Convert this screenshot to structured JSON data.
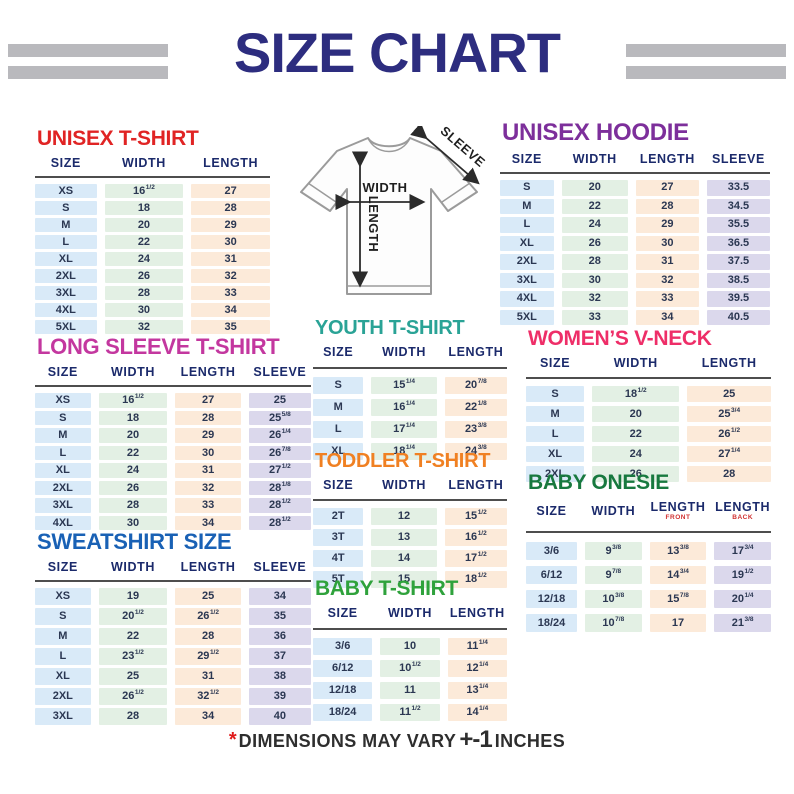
{
  "page": {
    "title": "SIZE CHART",
    "title_color": "#2d2d7f",
    "bar_color": "#b9b9bd",
    "footnote": {
      "asterisk": "*",
      "asterisk_color": "#e01b1b",
      "text": "DIMENSIONS MAY VARY",
      "tolerance": "+-1",
      "unit": "INCHES"
    }
  },
  "diagram": {
    "labels": {
      "width": "WIDTH",
      "length": "LENGTH",
      "sleeve": "SLEEVE"
    }
  },
  "column_colors": {
    "size": "#d9eaf8",
    "width": "#e3f0e4",
    "length": "#fcead9",
    "sleeve": "#dbd8ec"
  },
  "tables": [
    {
      "id": "unisex-tshirt",
      "title": "UNISEX T-SHIRT",
      "title_color": "#e02424",
      "columns": [
        {
          "label": "SIZE",
          "color": "#d9eaf8"
        },
        {
          "label": "WIDTH",
          "color": "#e3f0e4"
        },
        {
          "label": "LENGTH",
          "color": "#fcead9"
        }
      ],
      "rows": [
        [
          "XS",
          "16½",
          "27"
        ],
        [
          "S",
          "18",
          "28"
        ],
        [
          "M",
          "20",
          "29"
        ],
        [
          "L",
          "22",
          "30"
        ],
        [
          "XL",
          "24",
          "31"
        ],
        [
          "2XL",
          "26",
          "32"
        ],
        [
          "3XL",
          "28",
          "33"
        ],
        [
          "4XL",
          "30",
          "34"
        ],
        [
          "5XL",
          "32",
          "35"
        ]
      ]
    },
    {
      "id": "unisex-hoodie",
      "title": "UNISEX HOODIE",
      "title_color": "#7d2f9b",
      "columns": [
        {
          "label": "SIZE",
          "color": "#d9eaf8"
        },
        {
          "label": "WIDTH",
          "color": "#e3f0e4"
        },
        {
          "label": "LENGTH",
          "color": "#fcead9"
        },
        {
          "label": "SLEEVE",
          "color": "#dbd8ec"
        }
      ],
      "rows": [
        [
          "S",
          "20",
          "27",
          "33.5"
        ],
        [
          "M",
          "22",
          "28",
          "34.5"
        ],
        [
          "L",
          "24",
          "29",
          "35.5"
        ],
        [
          "XL",
          "26",
          "30",
          "36.5"
        ],
        [
          "2XL",
          "28",
          "31",
          "37.5"
        ],
        [
          "3XL",
          "30",
          "32",
          "38.5"
        ],
        [
          "4XL",
          "32",
          "33",
          "39.5"
        ],
        [
          "5XL",
          "33",
          "34",
          "40.5"
        ]
      ]
    },
    {
      "id": "long-sleeve",
      "title": "LONG SLEEVE T-SHIRT",
      "title_color": "#c3379f",
      "columns": [
        {
          "label": "SIZE",
          "color": "#d9eaf8"
        },
        {
          "label": "WIDTH",
          "color": "#e3f0e4"
        },
        {
          "label": "LENGTH",
          "color": "#fcead9"
        },
        {
          "label": "SLEEVE",
          "color": "#dbd8ec"
        }
      ],
      "rows": [
        [
          "XS",
          "16½",
          "27",
          "25"
        ],
        [
          "S",
          "18",
          "28",
          "25⅝"
        ],
        [
          "M",
          "20",
          "29",
          "26¼"
        ],
        [
          "L",
          "22",
          "30",
          "26⅞"
        ],
        [
          "XL",
          "24",
          "31",
          "27½"
        ],
        [
          "2XL",
          "26",
          "32",
          "28⅛"
        ],
        [
          "3XL",
          "28",
          "33",
          "28½"
        ],
        [
          "4XL",
          "30",
          "34",
          "28½"
        ]
      ]
    },
    {
      "id": "youth-tshirt",
      "title": "YOUTH T-SHIRT",
      "title_color": "#2aa396",
      "columns": [
        {
          "label": "SIZE",
          "color": "#d9eaf8"
        },
        {
          "label": "WIDTH",
          "color": "#e3f0e4"
        },
        {
          "label": "LENGTH",
          "color": "#fcead9"
        }
      ],
      "rows": [
        [
          "S",
          "15¼",
          "20⅞"
        ],
        [
          "M",
          "16¼",
          "22⅛"
        ],
        [
          "L",
          "17¼",
          "23⅜"
        ],
        [
          "XL",
          "18¼",
          "24⅜"
        ]
      ]
    },
    {
      "id": "womens-vneck",
      "title": "WOMEN’S V-NECK",
      "title_color": "#ee2e68",
      "columns": [
        {
          "label": "SIZE",
          "color": "#d9eaf8"
        },
        {
          "label": "WIDTH",
          "color": "#e3f0e4"
        },
        {
          "label": "LENGTH",
          "color": "#fcead9"
        }
      ],
      "rows": [
        [
          "S",
          "18½",
          "25"
        ],
        [
          "M",
          "20",
          "25¾"
        ],
        [
          "L",
          "22",
          "26½"
        ],
        [
          "XL",
          "24",
          "27¼"
        ],
        [
          "2XL",
          "26",
          "28"
        ]
      ]
    },
    {
      "id": "toddler-tshirt",
      "title": "TODDLER T-SHIRT",
      "title_color": "#f08022",
      "columns": [
        {
          "label": "SIZE",
          "color": "#d9eaf8"
        },
        {
          "label": "WIDTH",
          "color": "#e3f0e4"
        },
        {
          "label": "LENGTH",
          "color": "#fcead9"
        }
      ],
      "rows": [
        [
          "2T",
          "12",
          "15½"
        ],
        [
          "3T",
          "13",
          "16½"
        ],
        [
          "4T",
          "14",
          "17½"
        ],
        [
          "5T",
          "15",
          "18½"
        ]
      ]
    },
    {
      "id": "sweatshirt",
      "title": "SWEATSHIRT SIZE",
      "title_color": "#1961b5",
      "columns": [
        {
          "label": "SIZE",
          "color": "#d9eaf8"
        },
        {
          "label": "WIDTH",
          "color": "#e3f0e4"
        },
        {
          "label": "LENGTH",
          "color": "#fcead9"
        },
        {
          "label": "SLEEVE",
          "color": "#dbd8ec"
        }
      ],
      "rows": [
        [
          "XS",
          "19",
          "25",
          "34"
        ],
        [
          "S",
          "20½",
          "26½",
          "35"
        ],
        [
          "M",
          "22",
          "28",
          "36"
        ],
        [
          "L",
          "23½",
          "29½",
          "37"
        ],
        [
          "XL",
          "25",
          "31",
          "38"
        ],
        [
          "2XL",
          "26½",
          "32½",
          "39"
        ],
        [
          "3XL",
          "28",
          "34",
          "40"
        ]
      ]
    },
    {
      "id": "baby-onesie",
      "title": "BABY ONESIE",
      "title_color": "#18793f",
      "columns": [
        {
          "label": "SIZE",
          "color": "#d9eaf8"
        },
        {
          "label": "WIDTH",
          "color": "#e3f0e4"
        },
        {
          "label": "LENGTH",
          "sub": "FRONT",
          "sub_color": "#d03030",
          "color": "#fcead9"
        },
        {
          "label": "LENGTH",
          "sub": "BACK",
          "sub_color": "#d03030",
          "color": "#dbd8ec"
        }
      ],
      "rows": [
        [
          "3/6",
          "9⅜",
          "13⅜",
          "17¾"
        ],
        [
          "6/12",
          "9⅞",
          "14¾",
          "19½"
        ],
        [
          "12/18",
          "10⅜",
          "15⅞",
          "20¼"
        ],
        [
          "18/24",
          "10⅞",
          "17",
          "21⅜"
        ]
      ]
    },
    {
      "id": "baby-tshirt",
      "title": "BABY T-SHIRT",
      "title_color": "#2fa23c",
      "columns": [
        {
          "label": "SIZE",
          "color": "#d9eaf8"
        },
        {
          "label": "WIDTH",
          "color": "#e3f0e4"
        },
        {
          "label": "LENGTH",
          "color": "#fcead9"
        }
      ],
      "rows": [
        [
          "3/6",
          "10",
          "11¼"
        ],
        [
          "6/12",
          "10½",
          "12¼"
        ],
        [
          "12/18",
          "11",
          "13¼"
        ],
        [
          "18/24",
          "11½",
          "14¼"
        ]
      ]
    }
  ]
}
